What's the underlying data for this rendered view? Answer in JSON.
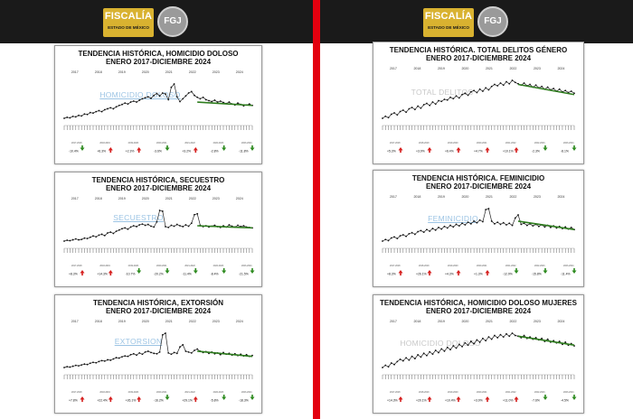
{
  "header": {
    "logo_text": "FISCALÍA",
    "logo_subtext": "ESTADO DE MÉXICO",
    "seal_text": "FGJ"
  },
  "colors": {
    "header_bg": "#1a1a1a",
    "logo_gold": "#d9b230",
    "divider_red": "#e3000f",
    "trend_green": "#2e7d1e",
    "up_arrow": "#d6201f",
    "down_arrow": "#2e8b20",
    "watermark_blue": "#9cc4e4"
  },
  "chart_data": [
    {
      "type": "line",
      "panel": "left",
      "title_line1": "TENDENCIA HISTÓRICA, HOMICIDIO DOLOSO",
      "title_line2": "ENERO 2017-DICIEMBRE 2024",
      "watermark": "HOMICIDIO DOLOSO",
      "years": [
        "2017",
        "2018",
        "2019",
        "2020",
        "2021",
        "2022",
        "2023",
        "2024"
      ],
      "values": [
        13,
        15,
        14,
        17,
        16,
        19,
        18,
        22,
        21,
        25,
        24,
        27,
        29,
        27,
        31,
        33,
        35,
        33,
        37,
        40,
        42,
        45,
        43,
        47,
        49,
        47,
        51,
        54,
        56,
        58,
        55,
        61,
        65,
        60,
        66,
        64,
        52,
        78,
        85,
        58,
        48,
        54,
        60,
        66,
        69,
        61,
        57,
        54,
        57,
        52,
        50,
        48,
        51,
        47,
        49,
        46,
        44,
        47,
        43,
        41,
        45,
        42,
        39,
        41,
        43,
        40
      ],
      "trend": [
        47,
        40
      ],
      "changes": [
        "-10.4%",
        "+6.3%",
        "+2.3%",
        "-3.6%",
        "+3.2%",
        "-2.8%",
        "-11.8%"
      ],
      "directions": [
        "down",
        "up",
        "up",
        "down",
        "up",
        "down",
        "down"
      ]
    },
    {
      "type": "line",
      "panel": "left",
      "title_line1": "TENDENCIA HISTÓRICA, SECUESTRO",
      "title_line2": "ENERO 2017-DICIEMBRE 2024",
      "watermark": "SECUESTRO",
      "years": [
        "2017",
        "2018",
        "2019",
        "2020",
        "2021",
        "2022",
        "2023",
        "2024"
      ],
      "values": [
        10,
        12,
        11,
        13,
        15,
        13,
        14,
        17,
        16,
        19,
        22,
        20,
        24,
        26,
        23,
        29,
        31,
        28,
        33,
        36,
        39,
        41,
        38,
        43,
        46,
        44,
        48,
        50,
        47,
        49,
        45,
        43,
        55,
        82,
        80,
        44,
        42,
        47,
        45,
        49,
        46,
        44,
        48,
        45,
        52,
        72,
        74,
        47,
        44,
        46,
        43,
        45,
        47,
        44,
        42,
        46,
        43,
        48,
        45,
        43,
        47,
        44,
        46,
        43,
        42,
        41
      ],
      "trend": [
        46,
        41
      ],
      "changes": [
        "+8.3%",
        "+14.3%",
        "-10.7%",
        "-20.2%",
        "-11.4%",
        "-8.4%",
        "-21.5%"
      ],
      "directions": [
        "up",
        "up",
        "down",
        "down",
        "down",
        "down",
        "down"
      ]
    },
    {
      "type": "line",
      "panel": "left",
      "title_line1": "TENDENCIA HISTÓRICA, EXTORSIÓN",
      "title_line2": "ENERO 2017-DICIEMBRE 2024",
      "watermark": "EXTORSION",
      "years": [
        "2017",
        "2018",
        "2019",
        "2020",
        "2021",
        "2022",
        "2023",
        "2024"
      ],
      "values": [
        12,
        14,
        13,
        15,
        17,
        16,
        18,
        20,
        19,
        22,
        24,
        23,
        26,
        28,
        27,
        30,
        29,
        32,
        35,
        34,
        37,
        39,
        38,
        42,
        44,
        41,
        46,
        43,
        48,
        50,
        47,
        45,
        44,
        48,
        88,
        92,
        46,
        43,
        47,
        45,
        60,
        65,
        50,
        48,
        46,
        52,
        55,
        50,
        47,
        49,
        45,
        48,
        44,
        46,
        42,
        47,
        43,
        45,
        41,
        44,
        40,
        43,
        39,
        42,
        38,
        40
      ],
      "trend": [
        50,
        38
      ],
      "changes": [
        "+7.8%",
        "+22.4%",
        "+26.1%",
        "-16.2%",
        "+29.1%",
        "-5.8%",
        "-18.3%"
      ],
      "directions": [
        "up",
        "up",
        "up",
        "down",
        "up",
        "down",
        "down"
      ]
    },
    {
      "type": "line",
      "panel": "right",
      "title_line1": "TENDENCIA HISTÓRICA. TOTAL DELITOS GÉNERO",
      "title_line2": "ENERO 2017-DICIEMBRE 2024",
      "watermark": "TOTAL DELITOS",
      "years": [
        "2017",
        "2018",
        "2019",
        "2020",
        "2021",
        "2022",
        "2023",
        "2024"
      ],
      "values": [
        35,
        38,
        36,
        41,
        43,
        40,
        45,
        47,
        44,
        49,
        51,
        48,
        53,
        50,
        55,
        57,
        54,
        59,
        56,
        61,
        60,
        63,
        62,
        66,
        64,
        68,
        65,
        70,
        72,
        69,
        74,
        76,
        73,
        78,
        75,
        80,
        77,
        82,
        85,
        83,
        87,
        84,
        89,
        86,
        91,
        88,
        86,
        84,
        87,
        83,
        85,
        81,
        84,
        80,
        82,
        78,
        81,
        77,
        79,
        75,
        78,
        74,
        76,
        73,
        75,
        72
      ],
      "trend": [
        85,
        70
      ],
      "changes": [
        "+5.3%",
        "+3.9%",
        "+6.4%",
        "+4.7%",
        "+10.1%",
        "-2.3%",
        "-8.1%"
      ],
      "directions": [
        "up",
        "up",
        "up",
        "up",
        "up",
        "down",
        "down"
      ]
    },
    {
      "type": "line",
      "panel": "right",
      "title_line1": "TENDENCIA HISTÓRICA. FEMINICIDIO",
      "title_line2": "ENERO 2017-DICIEMBRE 2024",
      "watermark": "FEMINICIDIO",
      "years": [
        "2017",
        "2018",
        "2019",
        "2020",
        "2021",
        "2022",
        "2023",
        "2024"
      ],
      "values": [
        22,
        25,
        23,
        28,
        30,
        27,
        32,
        34,
        31,
        36,
        38,
        35,
        40,
        42,
        39,
        44,
        41,
        46,
        43,
        48,
        45,
        50,
        47,
        52,
        49,
        54,
        51,
        56,
        53,
        58,
        55,
        60,
        57,
        62,
        59,
        82,
        84,
        60,
        55,
        58,
        54,
        57,
        53,
        56,
        52,
        66,
        72,
        54,
        56,
        52,
        55,
        51,
        54,
        50,
        53,
        49,
        52,
        48,
        51,
        47,
        50,
        46,
        49,
        45,
        48,
        44
      ],
      "trend": [
        60,
        44
      ],
      "changes": [
        "+8.3%",
        "+26.1%",
        "+4.3%",
        "+1.3%",
        "-12.9%",
        "-15.8%",
        "-11.4%"
      ],
      "directions": [
        "up",
        "up",
        "up",
        "up",
        "down",
        "down",
        "down"
      ]
    },
    {
      "type": "line",
      "panel": "right",
      "title_line1": "TENDENCIA HISTÓRICA, HOMICIDIO DOLOSO MUJERES",
      "title_line2": "ENERO 2017-DICIEMBRE 2024",
      "watermark": "HOMICIDIO DOLOSO",
      "years": [
        "2017",
        "2018",
        "2019",
        "2020",
        "2021",
        "2022",
        "2023",
        "2024"
      ],
      "values": [
        42,
        45,
        43,
        48,
        46,
        50,
        53,
        51,
        55,
        52,
        57,
        54,
        59,
        56,
        61,
        58,
        63,
        60,
        65,
        62,
        67,
        64,
        69,
        66,
        71,
        68,
        73,
        70,
        75,
        72,
        77,
        74,
        79,
        76,
        81,
        78,
        83,
        80,
        85,
        82,
        86,
        83,
        87,
        84,
        88,
        85,
        84,
        82,
        85,
        81,
        83,
        80,
        82,
        79,
        81,
        77,
        80,
        76,
        78,
        75,
        77,
        73,
        76,
        72,
        74,
        71
      ],
      "trend": [
        84,
        72
      ],
      "changes": [
        "+14.3%",
        "+20.1%",
        "+10.4%",
        "+3.9%",
        "+11.0%",
        "-7.6%",
        "-4.5%"
      ],
      "directions": [
        "up",
        "up",
        "up",
        "up",
        "up",
        "down",
        "down"
      ]
    }
  ]
}
